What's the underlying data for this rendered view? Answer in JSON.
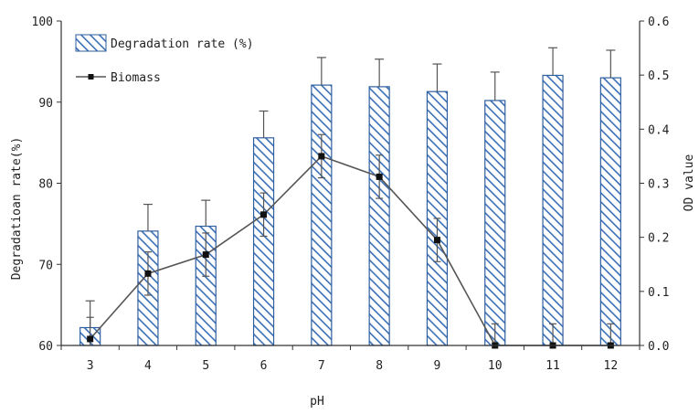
{
  "chart_data": {
    "type": "bar",
    "categories": [
      "3",
      "4",
      "5",
      "6",
      "7",
      "8",
      "9",
      "10",
      "11",
      "12"
    ],
    "xlabel": "pH",
    "ylabel_left": "Degradatioan rate(%)",
    "ylabel_right": "OD value",
    "ylim_left": [
      60,
      100
    ],
    "yticks_left": [
      "60",
      "70",
      "80",
      "90",
      "100"
    ],
    "ylim_right": [
      0,
      0.6
    ],
    "yticks_right": [
      "0.0",
      "0.1",
      "0.2",
      "0.3",
      "0.4",
      "0.5",
      "0.6"
    ],
    "series": [
      {
        "name": "Degradation rate (%)",
        "type": "bar",
        "axis": "left",
        "values": [
          62.2,
          74.1,
          74.7,
          85.6,
          92.1,
          91.9,
          91.3,
          90.2,
          93.3,
          93.0
        ],
        "errors": [
          3.3,
          3.3,
          3.2,
          3.3,
          3.4,
          3.4,
          3.4,
          3.5,
          3.4,
          3.4
        ],
        "color": "#3b6fb6"
      },
      {
        "name": "Biomass",
        "type": "line",
        "axis": "right",
        "values": [
          0.012,
          0.133,
          0.168,
          0.242,
          0.35,
          0.312,
          0.195,
          0.0,
          0.0,
          0.0
        ],
        "errors": [
          0.04,
          0.04,
          0.04,
          0.04,
          0.04,
          0.04,
          0.04,
          0.04,
          0.04,
          0.04
        ],
        "color": "#555555"
      }
    ],
    "legend": "top-left",
    "grid": false
  }
}
